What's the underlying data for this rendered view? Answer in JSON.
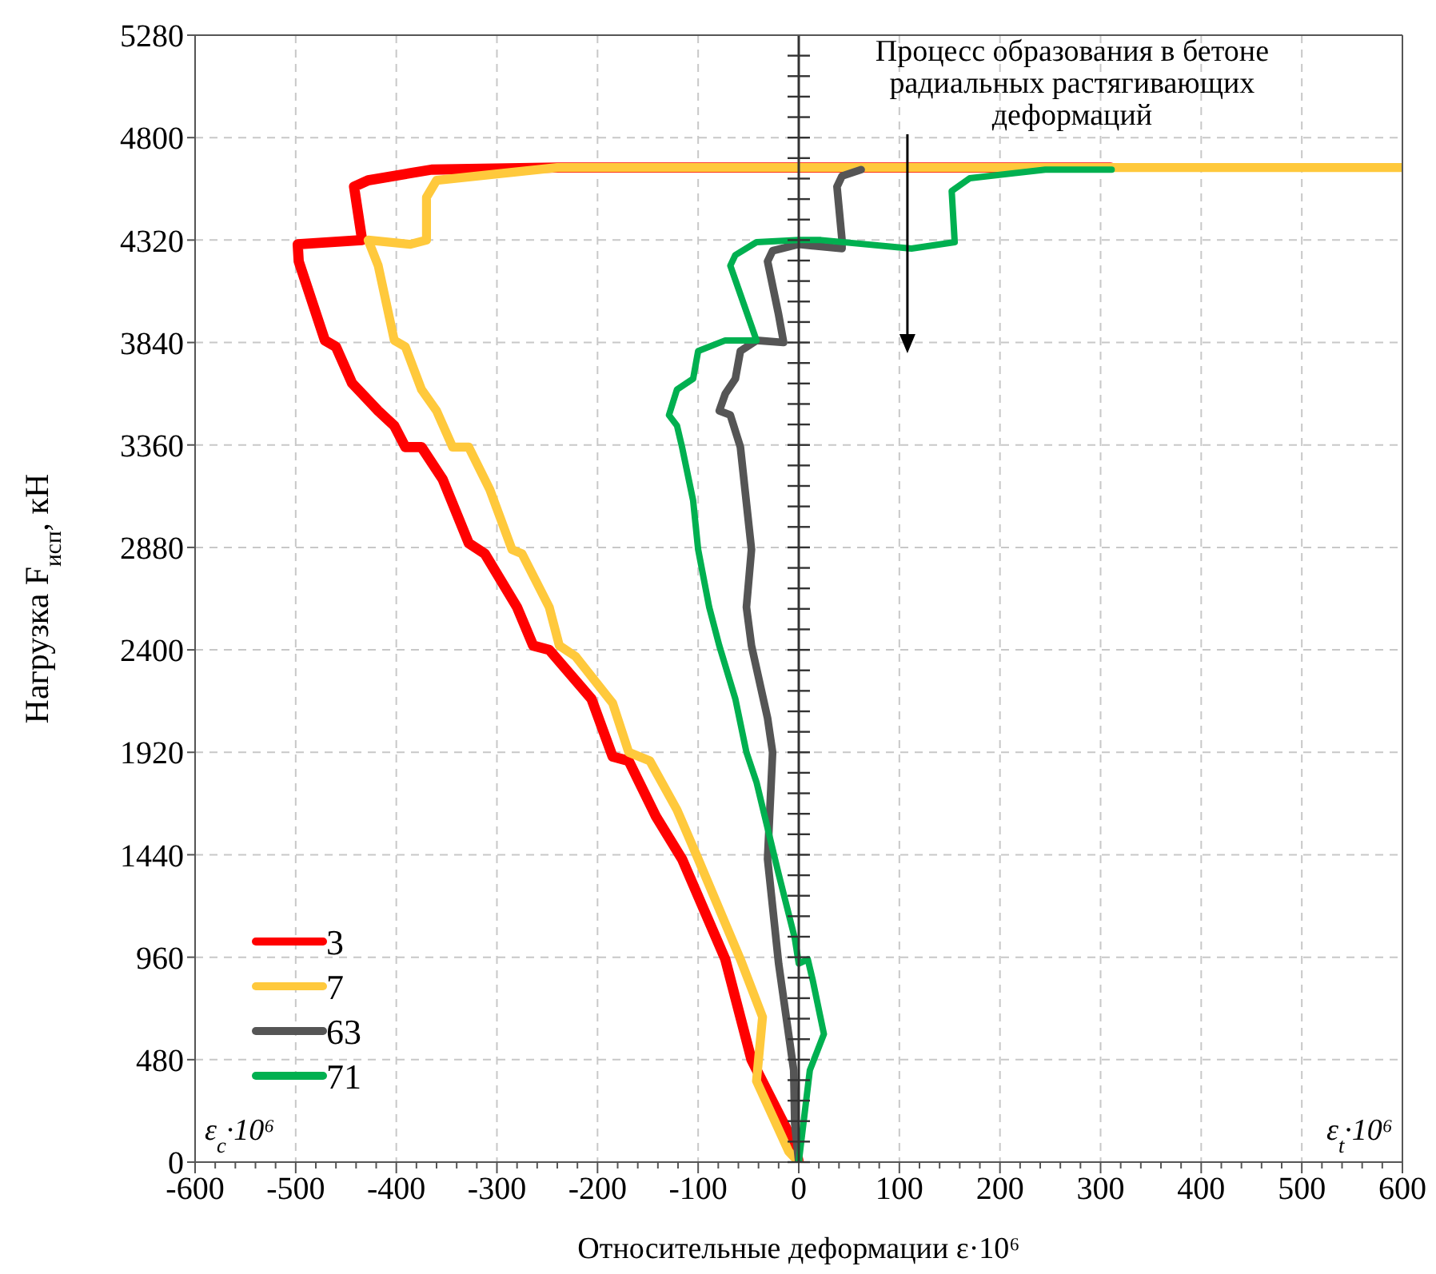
{
  "chart_data": {
    "type": "line",
    "xlabel": "Относительные деформации ε·10⁶",
    "ylabel": "Нагрузка F$_{исп}$, кН",
    "xlim": [
      -600,
      600
    ],
    "xticks": [
      -600,
      -500,
      -400,
      -300,
      -200,
      -100,
      0,
      100,
      200,
      300,
      400,
      500,
      600
    ],
    "ylim": [
      0,
      5280
    ],
    "yticks": [
      0,
      480,
      960,
      1440,
      1920,
      2400,
      2880,
      3360,
      3840,
      4320,
      4800,
      5280
    ],
    "grid": true,
    "legend": "bottom left",
    "marker": "none",
    "line_style": "solid",
    "annotations": [
      "Процесс образования в бетоне радиальных растягивающих деформаций",
      "ε$_{c}$·10⁶",
      "ε$_{t}$·10⁶"
    ],
    "series": [
      {
        "name": "3",
        "color": "#ff0000",
        "x": [
          0,
          -4,
          -47,
          -73,
          -116,
          -142,
          -169,
          -185,
          -206,
          -248,
          -264,
          -280,
          -312,
          -328,
          -354,
          -375,
          -391,
          -402,
          -418,
          -444,
          -460,
          -471,
          -497,
          -498,
          -434,
          -442,
          -428,
          -365,
          -240,
          310
        ],
        "values": [
          0,
          80,
          480,
          950,
          1420,
          1620,
          1880,
          1900,
          2170,
          2400,
          2420,
          2600,
          2850,
          2900,
          3200,
          3350,
          3350,
          3450,
          3520,
          3650,
          3820,
          3850,
          4220,
          4300,
          4320,
          4570,
          4600,
          4650,
          4660,
          4660
        ]
      },
      {
        "name": "7",
        "color": "#ffc93c",
        "x": [
          0,
          -10,
          -42,
          -36,
          -58,
          -100,
          -121,
          -148,
          -169,
          -185,
          -222,
          -238,
          -248,
          -275,
          -285,
          -307,
          -328,
          -344,
          -360,
          -375,
          -391,
          -402,
          -418,
          -428,
          -386,
          -370,
          -370,
          -360,
          -240,
          600
        ],
        "values": [
          0,
          50,
          380,
          680,
          950,
          1420,
          1650,
          1880,
          1920,
          2150,
          2370,
          2420,
          2600,
          2850,
          2870,
          3150,
          3350,
          3350,
          3520,
          3620,
          3820,
          3850,
          4200,
          4320,
          4300,
          4320,
          4520,
          4600,
          4660,
          4660
        ]
      },
      {
        "name": "63",
        "color": "#555555",
        "x": [
          0,
          -4,
          -5,
          -20,
          -31,
          -26,
          -31,
          -47,
          -52,
          -47,
          -58,
          -68,
          -79,
          -73,
          -63,
          -58,
          -42,
          -15,
          -20,
          -31,
          -26,
          0,
          43,
          43,
          38,
          43,
          62
        ],
        "values": [
          0,
          180,
          430,
          930,
          1420,
          1920,
          2080,
          2420,
          2600,
          2870,
          3350,
          3500,
          3520,
          3600,
          3670,
          3800,
          3850,
          3840,
          3970,
          4220,
          4270,
          4300,
          4280,
          4320,
          4570,
          4620,
          4650
        ]
      },
      {
        "name": "71",
        "color": "#00b050",
        "x": [
          0,
          11,
          25,
          14,
          9,
          0,
          -4,
          -20,
          -42,
          -52,
          -63,
          -79,
          -89,
          -100,
          -105,
          -116,
          -121,
          -129,
          -121,
          -105,
          -100,
          -73,
          -42,
          -68,
          -63,
          -42,
          0,
          22,
          112,
          155,
          152,
          170,
          245,
          311
        ],
        "values": [
          0,
          430,
          600,
          850,
          950,
          930,
          1050,
          1350,
          1780,
          1920,
          2170,
          2420,
          2600,
          2870,
          3100,
          3350,
          3450,
          3500,
          3620,
          3670,
          3800,
          3850,
          3850,
          4200,
          4250,
          4310,
          4320,
          4320,
          4280,
          4310,
          4550,
          4610,
          4650,
          4650
        ]
      }
    ]
  }
}
